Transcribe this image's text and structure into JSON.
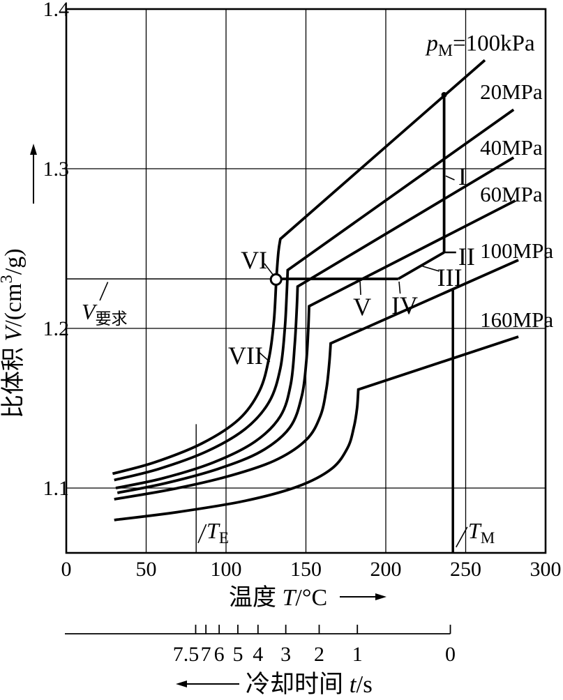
{
  "figure": {
    "background": "#ffffff",
    "ink_color": "#000000"
  },
  "chart_data": {
    "type": "line",
    "title": "",
    "xlabel_spans": [
      {
        "t": "温度 "
      },
      {
        "t": "T",
        "s": "i"
      },
      {
        "t": "/°C"
      }
    ],
    "ylabel_spans": [
      {
        "t": "比体积 "
      },
      {
        "t": "V",
        "s": "i"
      },
      {
        "t": "/(cm"
      },
      {
        "t": "3",
        "s": "sup"
      },
      {
        "t": "/g)"
      }
    ],
    "x_axis": {
      "min": 0,
      "max": 300,
      "ticks": [
        {
          "v": 0,
          "label": "0"
        },
        {
          "v": 50,
          "label": "50"
        },
        {
          "v": 100,
          "label": "100"
        },
        {
          "v": 150,
          "label": "150"
        },
        {
          "v": 200,
          "label": "200"
        },
        {
          "v": 250,
          "label": "250"
        },
        {
          "v": 300,
          "label": "300"
        }
      ],
      "grid": true
    },
    "y_axis": {
      "min": 1.06,
      "max": 1.4,
      "ticks": [
        {
          "v": 1.1,
          "label": "1.1"
        },
        {
          "v": 1.2,
          "label": "1.2"
        },
        {
          "v": 1.3,
          "label": "1.3"
        },
        {
          "v": 1.4,
          "label": "1.4"
        }
      ],
      "grid": true
    },
    "series": [
      {
        "name": "p_M=100kPa",
        "label_spans": [
          {
            "t": "p",
            "s": "i"
          },
          {
            "t": "M",
            "s": "sub"
          },
          {
            "t": "=100kPa"
          }
        ],
        "label_pos": {
          "T": 225.5,
          "V": 1.374,
          "anchor": "start",
          "size": 33
        },
        "tail": [
          [
            29,
            1.109
          ],
          [
            55,
            1.116
          ],
          [
            85,
            1.128
          ],
          [
            108,
            1.143
          ],
          [
            121,
            1.161
          ],
          [
            127,
            1.182
          ],
          [
            130,
            1.205
          ],
          [
            131.5,
            1.231
          ],
          [
            132.8,
            1.248
          ],
          [
            134,
            1.256
          ]
        ],
        "end": [
          262,
          1.368
        ]
      },
      {
        "name": "20MPa",
        "label_spans": [
          {
            "t": "20MPa"
          }
        ],
        "label_pos": {
          "T": 259,
          "V": 1.3437,
          "anchor": "start",
          "size": 31
        },
        "tail": [
          [
            30,
            1.105
          ],
          [
            58,
            1.112
          ],
          [
            88,
            1.123
          ],
          [
            112,
            1.137
          ],
          [
            127,
            1.154
          ],
          [
            134,
            1.175
          ],
          [
            136.8,
            1.2
          ],
          [
            138,
            1.222
          ],
          [
            138.6,
            1.2365
          ]
        ],
        "end": [
          280,
          1.337
        ]
      },
      {
        "name": "40MPa",
        "label_spans": [
          {
            "t": "40MPa"
          }
        ],
        "label_pos": {
          "T": 259,
          "V": 1.3087,
          "anchor": "start",
          "size": 31
        },
        "tail": [
          [
            31,
            1.1
          ],
          [
            60,
            1.106
          ],
          [
            92,
            1.116
          ],
          [
            118,
            1.129
          ],
          [
            134,
            1.145
          ],
          [
            140.5,
            1.165
          ],
          [
            143,
            1.19
          ],
          [
            144.3,
            1.213
          ],
          [
            144.8,
            1.2262
          ]
        ],
        "end": [
          280,
          1.307
        ]
      },
      {
        "name": "60MPa",
        "label_spans": [
          {
            "t": "60MPa"
          }
        ],
        "label_pos": {
          "T": 259,
          "V": 1.2795,
          "anchor": "start",
          "size": 31
        },
        "tail": [
          [
            32,
            1.097
          ],
          [
            62,
            1.103
          ],
          [
            95,
            1.112
          ],
          [
            122,
            1.123
          ],
          [
            140,
            1.138
          ],
          [
            147.5,
            1.158
          ],
          [
            150.3,
            1.18
          ],
          [
            151.5,
            1.2
          ],
          [
            152,
            1.2139
          ]
        ],
        "end": [
          281,
          1.28
        ]
      },
      {
        "name": "100MPa",
        "label_spans": [
          {
            "t": "100MPa"
          }
        ],
        "label_pos": {
          "T": 259,
          "V": 1.2441,
          "anchor": "start",
          "size": 31
        },
        "tail": [
          [
            30,
            1.093
          ],
          [
            65,
            1.099
          ],
          [
            100,
            1.107
          ],
          [
            130,
            1.117
          ],
          [
            150,
            1.13
          ],
          [
            159,
            1.145
          ],
          [
            162.8,
            1.162
          ],
          [
            164.6,
            1.178
          ],
          [
            165.5,
            1.1906
          ]
        ],
        "end": [
          283,
          1.2428
        ]
      },
      {
        "name": "160MPa",
        "label_spans": [
          {
            "t": "160MPa"
          }
        ],
        "label_pos": {
          "T": 259,
          "V": 1.2009,
          "anchor": "start",
          "size": 31
        },
        "tail": [
          [
            30,
            1.08
          ],
          [
            70,
            1.085
          ],
          [
            112,
            1.092
          ],
          [
            145,
            1.101
          ],
          [
            166,
            1.112
          ],
          [
            176,
            1.125
          ],
          [
            180,
            1.138
          ],
          [
            182,
            1.15
          ],
          [
            182.8,
            1.1617
          ]
        ],
        "end": [
          283,
          1.1948
        ]
      }
    ],
    "process_path": {
      "pressurize_line": {
        "T": 236.5,
        "V_bottom": 1.2476,
        "V_top": 1.3463
      },
      "top_dot": [
        236.5,
        1.3463
      ],
      "ii_tick": [
        [
          236.5,
          1.2476
        ],
        [
          244,
          1.2476
        ]
      ],
      "pack_segment": [
        [
          207.8,
          1.231
        ],
        [
          236.5,
          1.2476
        ]
      ],
      "isochor_segment": [
        [
          131.3,
          1.231
        ],
        [
          207.8,
          1.231
        ]
      ],
      "circle_point": [
        131.3,
        1.2306
      ],
      "required_volume_line": {
        "V": 1.231,
        "T1": 0,
        "T2": 128
      }
    },
    "reference_lines": {
      "t_e_line": {
        "T": 81.3,
        "V1": 1.059,
        "V2": 1.14
      },
      "t_m_line": {
        "T": 242,
        "V1": 1.059,
        "V2": 1.2249
      }
    },
    "annotations": [
      {
        "id": "point-i",
        "spans": [
          {
            "t": "I"
          }
        ],
        "T": 248,
        "V": 1.29,
        "anchor": "middle",
        "size": 36,
        "leader": [
          [
            243,
            1.293
          ],
          [
            237.5,
            1.2955
          ]
        ]
      },
      {
        "id": "point-ii",
        "spans": [
          {
            "t": "II"
          }
        ],
        "T": 250.6,
        "V": 1.2397,
        "anchor": "middle",
        "size": 36
      },
      {
        "id": "point-iii",
        "spans": [
          {
            "t": "III"
          }
        ],
        "T": 240,
        "V": 1.2266,
        "anchor": "middle",
        "size": 36,
        "leader": [
          [
            233.5,
            1.2358
          ],
          [
            223,
            1.2389
          ]
        ]
      },
      {
        "id": "point-iv",
        "spans": [
          {
            "t": "IV"
          }
        ],
        "T": 211.8,
        "V": 1.2092,
        "anchor": "middle",
        "size": 36,
        "leader": [
          [
            209,
            1.2218
          ],
          [
            208.3,
            1.2293
          ]
        ]
      },
      {
        "id": "point-v",
        "spans": [
          {
            "t": "V"
          }
        ],
        "T": 185.2,
        "V": 1.2083,
        "anchor": "middle",
        "size": 36,
        "leader": [
          [
            184.3,
            1.221
          ],
          [
            183.9,
            1.2293
          ]
        ]
      },
      {
        "id": "point-vi",
        "spans": [
          {
            "t": "VI"
          }
        ],
        "T": 117.5,
        "V": 1.2376,
        "anchor": "middle",
        "size": 36,
        "leader": [
          [
            124,
            1.2406
          ],
          [
            129.4,
            1.2336
          ]
        ]
      },
      {
        "id": "point-vii",
        "spans": [
          {
            "t": "VII"
          }
        ],
        "T": 112.2,
        "V": 1.1777,
        "anchor": "middle",
        "size": 36,
        "leader": [
          [
            120.5,
            1.1852
          ],
          [
            127.4,
            1.179
          ]
        ]
      },
      {
        "id": "v-required",
        "spans": [
          {
            "t": "V",
            "s": "i"
          },
          {
            "t": "要求",
            "s": "sub"
          }
        ],
        "T": 9.6,
        "V": 1.2057,
        "anchor": "start",
        "size": 32,
        "leader": [
          [
            21,
            1.2175
          ],
          [
            26,
            1.229
          ]
        ]
      },
      {
        "id": "t-e",
        "spans": [
          {
            "t": "T",
            "s": "i"
          },
          {
            "t": "E",
            "s": "sub"
          }
        ],
        "T": 87.8,
        "V": 1.0686,
        "anchor": "start",
        "size": 32,
        "leader": [
          [
            82.5,
            1.0656
          ],
          [
            87.6,
            1.0773
          ]
        ]
      },
      {
        "id": "t-m",
        "spans": [
          {
            "t": "T",
            "s": "i"
          },
          {
            "t": "M",
            "s": "sub"
          }
        ],
        "T": 251.5,
        "V": 1.0686,
        "anchor": "start",
        "size": 32,
        "leader": [
          [
            244,
            1.063
          ],
          [
            251,
            1.0756
          ]
        ]
      }
    ],
    "time_axis": {
      "label_spans": [
        {
          "t": "冷却时间 "
        },
        {
          "t": "t",
          "s": "i"
        },
        {
          "t": "/s"
        }
      ],
      "ticks": [
        {
          "t": "7.5",
          "T": 81,
          "dx": -14
        },
        {
          "t": "7",
          "T": 87.4
        },
        {
          "t": "6",
          "T": 95.7
        },
        {
          "t": "5",
          "T": 107.4
        },
        {
          "t": "4",
          "T": 120
        },
        {
          "t": "3",
          "T": 137.4
        },
        {
          "t": "2",
          "T": 158.3
        },
        {
          "t": "1",
          "T": 182.2
        },
        {
          "t": "0",
          "T": 240.4
        }
      ]
    },
    "legend_position": "right-inline",
    "grid": true
  }
}
